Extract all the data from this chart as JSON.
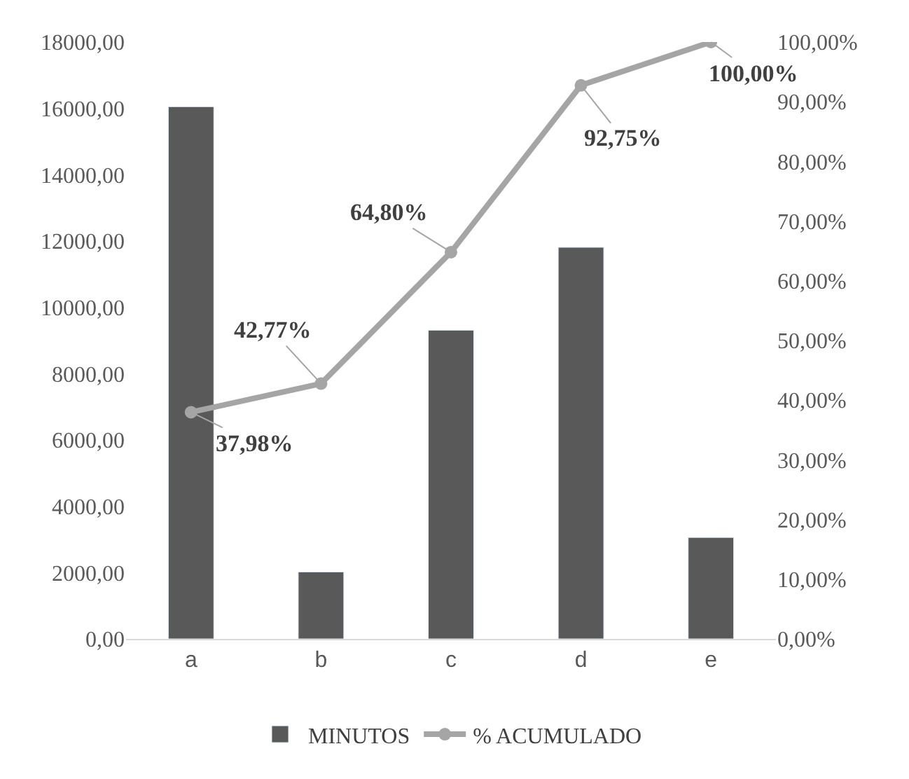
{
  "chart_data": {
    "type": "bar",
    "categories": [
      "a",
      "b",
      "c",
      "d",
      "e"
    ],
    "series": [
      {
        "name": "MINUTOS",
        "color": "#595959",
        "values": [
          16050,
          2020,
          9310,
          11810,
          3060
        ]
      },
      {
        "name": "% ACUMULADO",
        "type": "line",
        "axis": "y2",
        "color": "#a5a5a5",
        "marker": "circle",
        "values": [
          37.98,
          42.77,
          64.8,
          92.75,
          100.0
        ],
        "value_labels": [
          "37,98%",
          "42,77%",
          "64,80%",
          "92,75%",
          "100,00%"
        ]
      }
    ],
    "ylim": [
      0,
      18000
    ],
    "yticks": [
      {
        "value": 0,
        "label": "0,00"
      },
      {
        "value": 2000,
        "label": "2000,00"
      },
      {
        "value": 4000,
        "label": "4000,00"
      },
      {
        "value": 6000,
        "label": "6000,00"
      },
      {
        "value": 8000,
        "label": "8000,00"
      },
      {
        "value": 10000,
        "label": "10000,00"
      },
      {
        "value": 12000,
        "label": "12000,00"
      },
      {
        "value": 14000,
        "label": "14000,00"
      },
      {
        "value": 16000,
        "label": "16000,00"
      },
      {
        "value": 18000,
        "label": "18000,00"
      }
    ],
    "y2lim": [
      0,
      100
    ],
    "y2ticks": [
      {
        "value": 0,
        "label": "0,00%"
      },
      {
        "value": 10,
        "label": "10,00%"
      },
      {
        "value": 20,
        "label": "20,00%"
      },
      {
        "value": 30,
        "label": "30,00%"
      },
      {
        "value": 40,
        "label": "40,00%"
      },
      {
        "value": 50,
        "label": "50,00%"
      },
      {
        "value": 60,
        "label": "60,00%"
      },
      {
        "value": 70,
        "label": "70,00%"
      },
      {
        "value": 80,
        "label": "80,00%"
      },
      {
        "value": 90,
        "label": "90,00%"
      },
      {
        "value": 100,
        "label": "100,00%"
      }
    ],
    "legend": "bottom"
  }
}
